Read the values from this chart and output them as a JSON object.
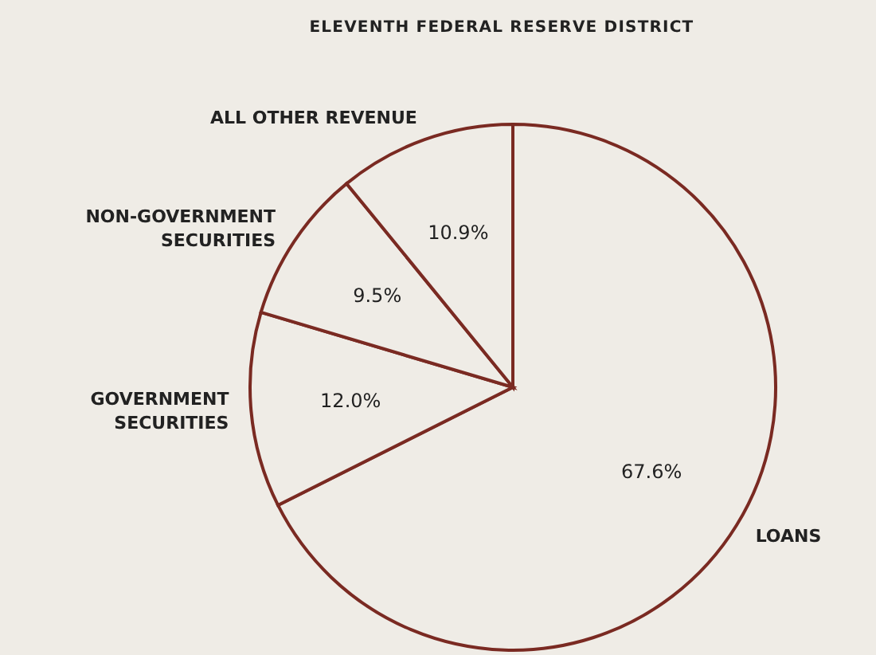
{
  "chart_data": {
    "type": "pie",
    "title": "ELEVENTH FEDERAL RESERVE DISTRICT",
    "categories": [
      "LOANS",
      "GOVERNMENT\nSECURITIES",
      "NON-GOVERNMENT\nSECURITIES",
      "ALL OTHER REVENUE"
    ],
    "values": [
      67.6,
      12.0,
      9.5,
      10.9
    ],
    "value_labels": [
      "67.6%",
      "12.0%",
      "9.5%",
      "10.9%"
    ],
    "colors": [
      "#efece6",
      "#efece6",
      "#efece6",
      "#efece6"
    ]
  }
}
